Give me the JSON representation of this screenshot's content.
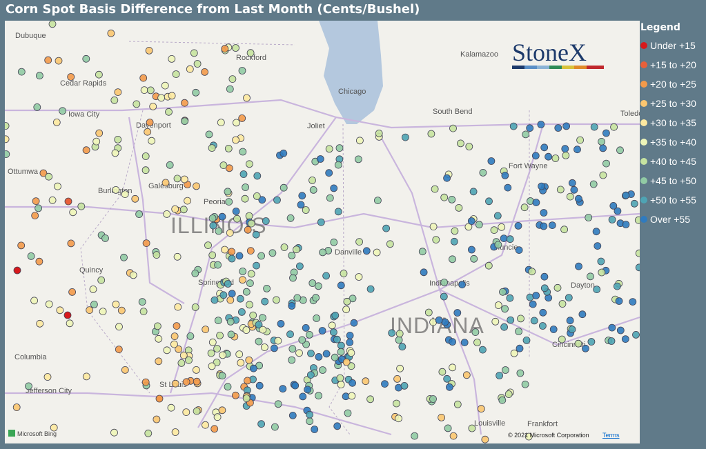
{
  "title": "Corn Spot Basis Difference from Last Month (Cents/Bushel)",
  "legend": {
    "title": "Legend",
    "items": [
      {
        "label": "Under +15",
        "color": "#d7191c"
      },
      {
        "label": "+15 to +20",
        "color": "#e8603a"
      },
      {
        "label": "+20 to +25",
        "color": "#f39a4a"
      },
      {
        "label": "+25 to +30",
        "color": "#fbc670"
      },
      {
        "label": "+30 to +35",
        "color": "#fde9a0"
      },
      {
        "label": "+35 to +40",
        "color": "#eef5b8"
      },
      {
        "label": "+40 to +45",
        "color": "#c6e3a0"
      },
      {
        "label": "+45 to +50",
        "color": "#91cba4"
      },
      {
        "label": "+50 to +55",
        "color": "#4ea4b4"
      },
      {
        "label": "Over +55",
        "color": "#2f7bbf"
      }
    ]
  },
  "map": {
    "cities": [
      "Dubuque",
      "Rockford",
      "Kalamazoo",
      "Cedar Rapids",
      "Chicago",
      "Iowa City",
      "Davenport",
      "South Bend",
      "Toledo",
      "Joliet",
      "Ottumwa",
      "Fort Wayne",
      "Burlington",
      "Galesburg",
      "Peoria",
      "Muncie",
      "Danville",
      "Quincy",
      "Springfield",
      "Indianapolis",
      "Dayton",
      "Cincinnati",
      "Columbia",
      "St Louis",
      "Jefferson City",
      "Louisville",
      "Frankfort"
    ],
    "states": [
      "ILLINOIS",
      "INDIANA"
    ],
    "logo": "StoneX",
    "provider": "Microsoft Bing",
    "copyright": "© 2021 Microsoft Corporation",
    "terms": "Terms"
  }
}
